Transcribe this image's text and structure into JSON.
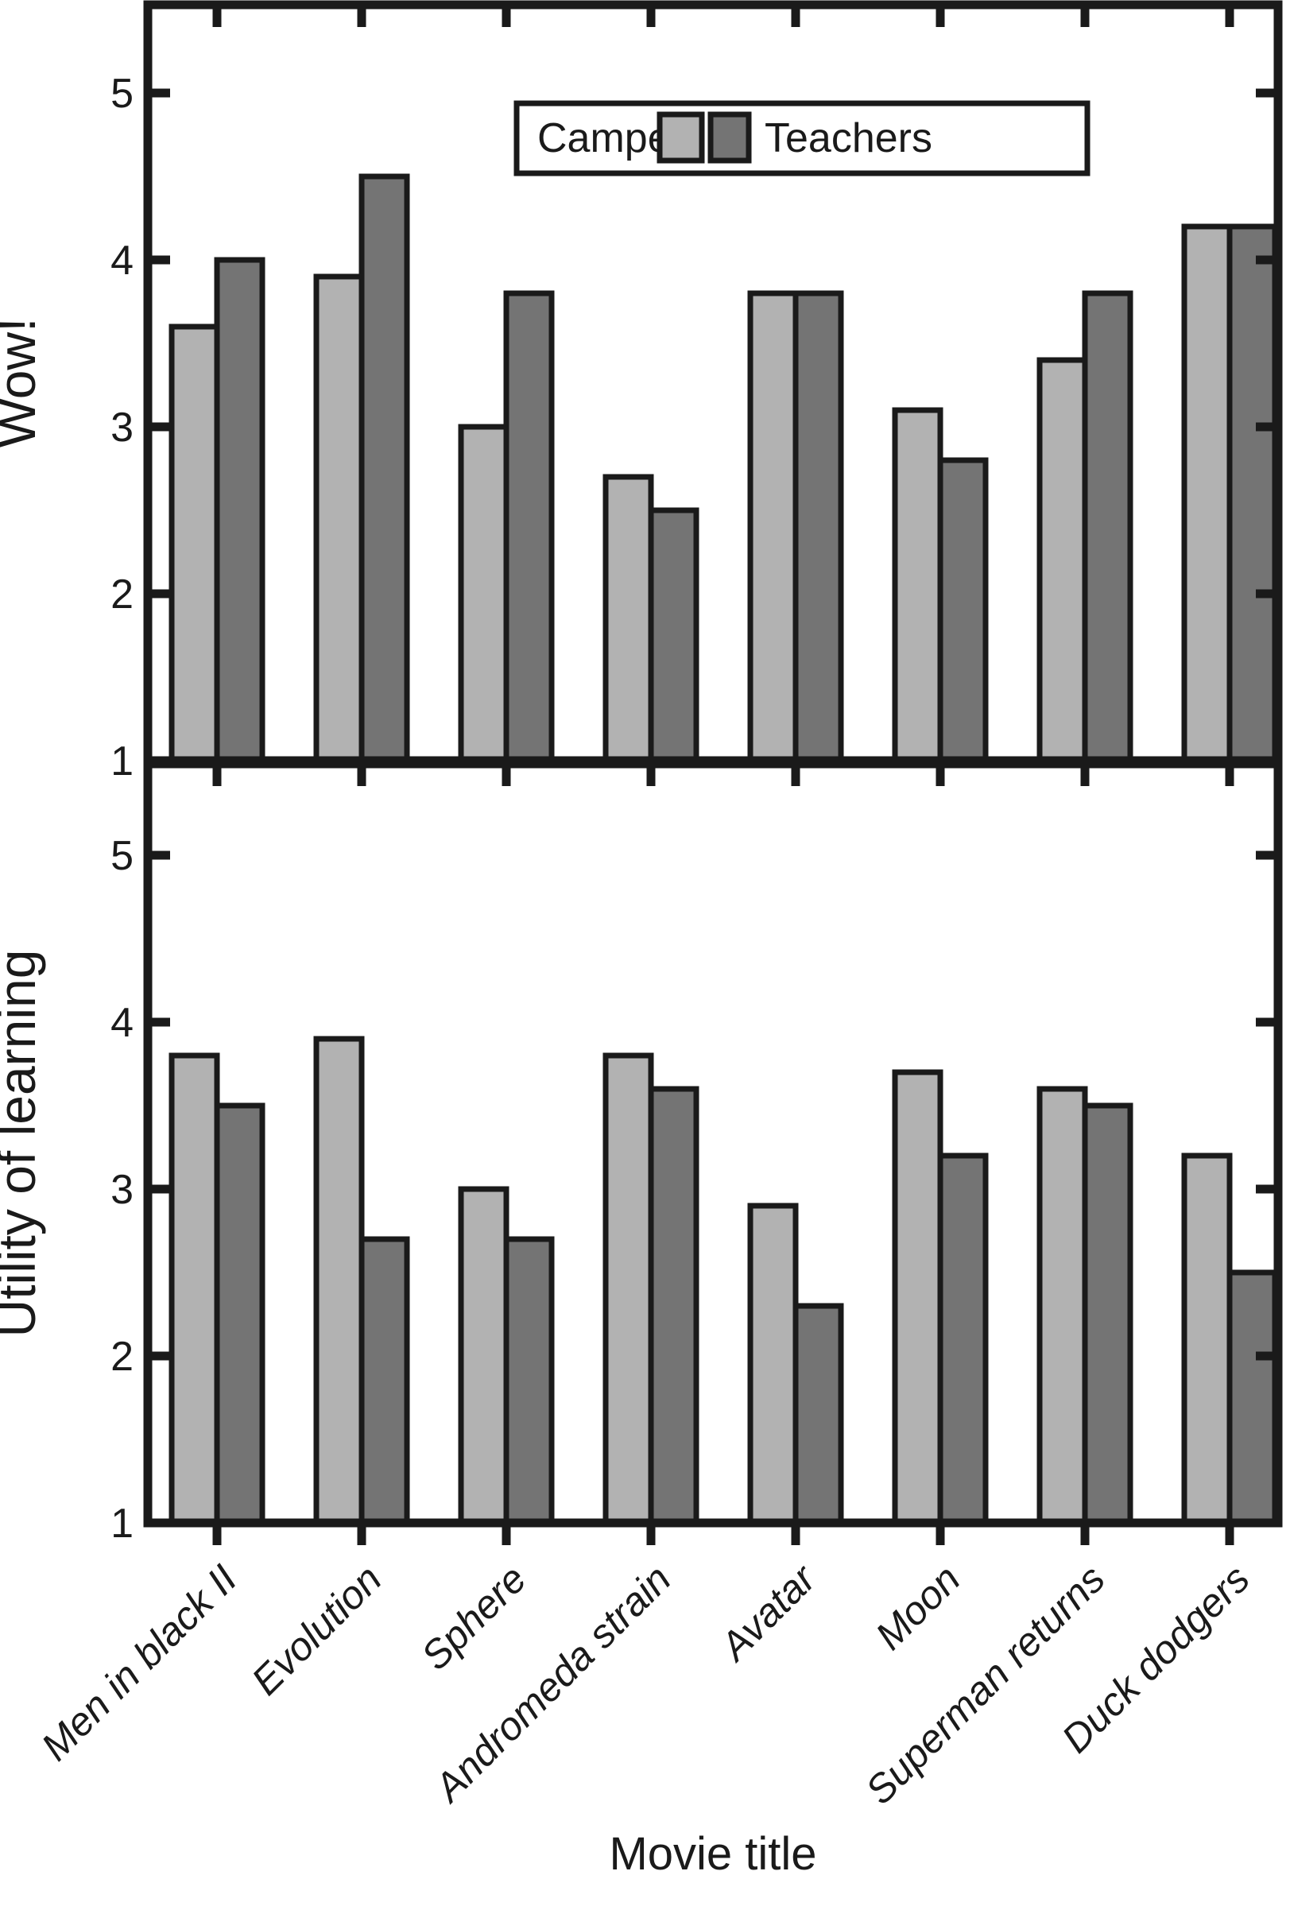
{
  "figure": {
    "xlabel": "Movie title",
    "background": "#ffffff",
    "line_color": "#1a1a1a"
  },
  "legend": {
    "position": "upper center inside top panel",
    "items": [
      {
        "label": "Campers",
        "color": "#b2b2b2"
      },
      {
        "label": "Teachers",
        "color": "#747474"
      }
    ]
  },
  "chart_data": [
    {
      "type": "bar",
      "panel": "top",
      "title": "",
      "ylabel": "Wow!",
      "xlabel": "",
      "ylim": [
        1,
        5.5
      ],
      "yticks": [
        "1",
        "2",
        "3",
        "4",
        "5"
      ],
      "grid": false,
      "categories": [
        "Men in black II",
        "Evolution",
        "Sphere",
        "Andromeda strain",
        "Avatar",
        "Moon",
        "Superman returns",
        "Duck dodgers"
      ],
      "series": [
        {
          "name": "Campers",
          "color": "#b2b2b2",
          "values": [
            3.6,
            3.9,
            3.0,
            2.7,
            3.8,
            3.1,
            3.4,
            4.2
          ]
        },
        {
          "name": "Teachers",
          "color": "#747474",
          "values": [
            4.0,
            4.5,
            3.8,
            2.5,
            3.8,
            2.8,
            3.8,
            4.2
          ]
        }
      ]
    },
    {
      "type": "bar",
      "panel": "bottom",
      "title": "",
      "ylabel": "Utility of learning",
      "xlabel": "Movie title",
      "ylim": [
        1,
        5.5
      ],
      "yticks": [
        "1",
        "2",
        "3",
        "4",
        "5"
      ],
      "grid": false,
      "categories": [
        "Men in black II",
        "Evolution",
        "Sphere",
        "Andromeda strain",
        "Avatar",
        "Moon",
        "Superman returns",
        "Duck dodgers"
      ],
      "series": [
        {
          "name": "Campers",
          "color": "#b2b2b2",
          "values": [
            3.8,
            3.9,
            3.0,
            3.8,
            2.9,
            3.7,
            3.6,
            3.2
          ]
        },
        {
          "name": "Teachers",
          "color": "#747474",
          "values": [
            3.5,
            2.7,
            2.7,
            3.6,
            2.3,
            3.2,
            3.5,
            2.5
          ]
        }
      ]
    }
  ]
}
